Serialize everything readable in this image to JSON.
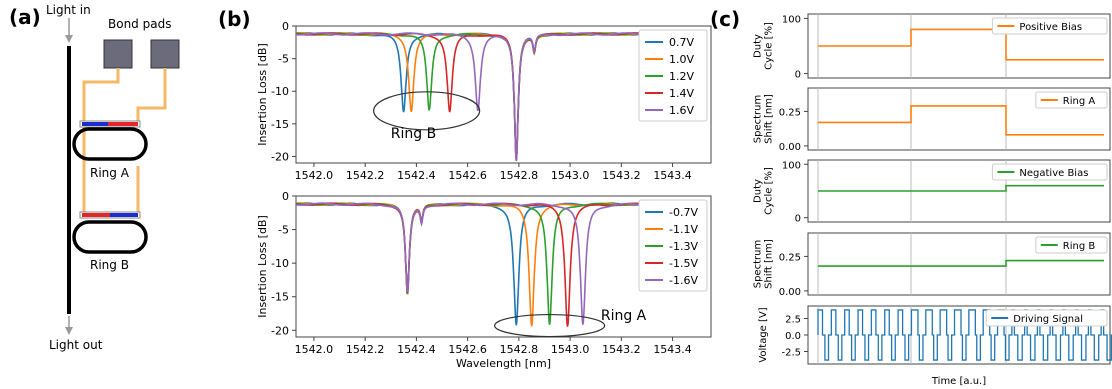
{
  "panel_labels": {
    "a": "(a)",
    "b": "(b)",
    "c": "(c)"
  },
  "schematic": {
    "light_in": "Light in",
    "light_out": "Light out",
    "bond_pads": "Bond pads",
    "ring_a": "Ring A",
    "ring_b": "Ring B"
  },
  "colors": {
    "blue": "#1f77b4",
    "orange": "#ff7f0e",
    "green": "#2ca02c",
    "red": "#d62728",
    "purple": "#9467bd",
    "wire": "#f5b865",
    "pad": "#6b6b7b",
    "heater_red": "#e3262a",
    "heater_blue": "#1d2ccc"
  },
  "chart_data": [
    {
      "type": "line",
      "panel": "b-top",
      "xlabel": "",
      "ylabel": "Insertion Loss [dB]",
      "xlim": [
        1541.93,
        1543.55
      ],
      "ylim": [
        -21,
        0
      ],
      "xticks": [
        "1542.0",
        "1542.2",
        "1542.4",
        "1542.6",
        "1542.8",
        "1543.0",
        "1543.2",
        "1543.4"
      ],
      "yticks": [
        "0",
        "-5",
        "-10",
        "-15",
        "-20"
      ],
      "baseline": -1.2,
      "fixed_dip": {
        "x": 1542.79,
        "depth": -20.5
      },
      "series": [
        {
          "name": "0.7V",
          "dip_x": 1542.35,
          "depth": -13.2
        },
        {
          "name": "1.0V",
          "dip_x": 1542.38,
          "depth": -13.0
        },
        {
          "name": "1.2V",
          "dip_x": 1542.45,
          "depth": -13.0
        },
        {
          "name": "1.4V",
          "dip_x": 1542.53,
          "depth": -13.2
        },
        {
          "name": "1.6V",
          "dip_x": 1542.64,
          "depth": -12.8
        }
      ],
      "annotation": "Ring B"
    },
    {
      "type": "line",
      "panel": "b-bottom",
      "xlabel": "Wavelength [nm]",
      "ylabel": "Insertion Loss [dB]",
      "xlim": [
        1541.93,
        1543.55
      ],
      "ylim": [
        -21,
        0
      ],
      "xticks": [
        "1542.0",
        "1542.2",
        "1542.4",
        "1542.6",
        "1542.8",
        "1543.0",
        "1543.2",
        "1543.4"
      ],
      "yticks": [
        "0",
        "-5",
        "-10",
        "-15",
        "-20"
      ],
      "baseline": -1.2,
      "fixed_dip": {
        "x": 1542.365,
        "depth": -14.5
      },
      "series": [
        {
          "name": "-0.7V",
          "dip_x": 1542.79,
          "depth": -19.3
        },
        {
          "name": "-1.1V",
          "dip_x": 1542.85,
          "depth": -19.3
        },
        {
          "name": "-1.3V",
          "dip_x": 1542.92,
          "depth": -19.3
        },
        {
          "name": "-1.5V",
          "dip_x": 1542.99,
          "depth": -19.3
        },
        {
          "name": "-1.6V",
          "dip_x": 1543.05,
          "depth": -19.3
        }
      ],
      "annotation": "Ring A"
    },
    {
      "type": "line",
      "panel": "c-1",
      "ylabel": "Duty\nCycle [%]",
      "ylim": [
        -8,
        108
      ],
      "yticks": [
        "0",
        "100"
      ],
      "legend": "Positive Bias",
      "color": "orange",
      "steps": [
        50,
        80,
        25
      ]
    },
    {
      "type": "line",
      "panel": "c-2",
      "ylabel": "Spectrum\nShift [nm]",
      "ylim": [
        -0.03,
        0.42
      ],
      "yticks": [
        "0.00",
        "0.25"
      ],
      "legend": "Ring A",
      "color": "orange",
      "steps": [
        0.17,
        0.29,
        0.08
      ]
    },
    {
      "type": "line",
      "panel": "c-3",
      "ylabel": "Duty\nCycle [%]",
      "ylim": [
        -8,
        108
      ],
      "yticks": [
        "0",
        "100"
      ],
      "legend": "Negative Bias",
      "color": "green",
      "steps": [
        50,
        50,
        60
      ]
    },
    {
      "type": "line",
      "panel": "c-4",
      "ylabel": "Spectrum\nShift [nm]",
      "ylim": [
        -0.03,
        0.42
      ],
      "yticks": [
        "0.00",
        "0.25"
      ],
      "legend": "Ring B",
      "color": "green",
      "steps": [
        0.18,
        0.18,
        0.22
      ]
    },
    {
      "type": "line",
      "panel": "c-5",
      "ylabel": "Voltage [V]",
      "xlabel": "Time [a.u.]",
      "ylim": [
        -4.4,
        4.4
      ],
      "yticks": [
        "2.5",
        "0.0",
        "-2.5"
      ],
      "legend": "Driving Signal",
      "color": "blue",
      "levels": [
        3.8,
        0,
        -3.8
      ]
    }
  ]
}
